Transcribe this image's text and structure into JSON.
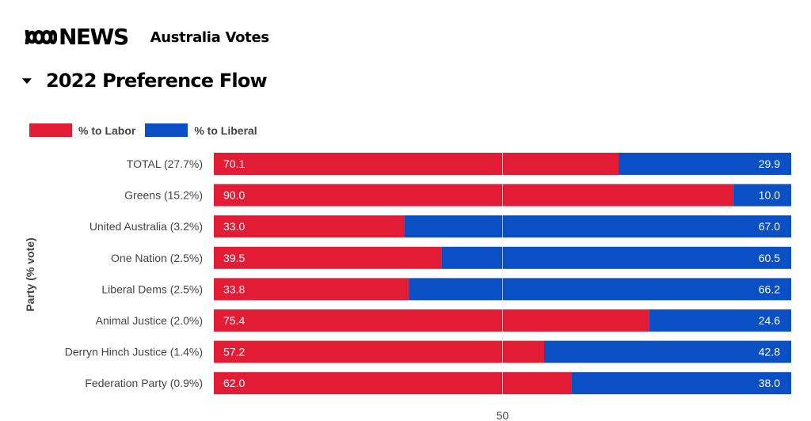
{
  "header": {
    "logo_text": "NEWS",
    "site_name": "Australia Votes"
  },
  "section": {
    "title": "2022 Preference Flow",
    "expanded": true
  },
  "colors": {
    "labor": "#e21c34",
    "liberal": "#0a4fc4"
  },
  "chart_data": {
    "type": "bar",
    "orientation": "horizontal",
    "stacked": true,
    "title": "2022 Preference Flow",
    "xlabel": "",
    "ylabel": "Party (% vote)",
    "xlim": [
      0,
      100
    ],
    "x_ticks": [
      50
    ],
    "x_tick_labels": [
      "50"
    ],
    "reference_line": 50,
    "legend_position": "top-left",
    "legend": [
      "% to Labor",
      "% to Liberal"
    ],
    "categories": [
      "TOTAL (27.7%)",
      "Greens (15.2%)",
      "United Australia (3.2%)",
      "One Nation (2.5%)",
      "Liberal Dems (2.5%)",
      "Animal Justice (2.0%)",
      "Derryn Hinch Justice (1.4%)",
      "Federation Party (0.9%)"
    ],
    "series": [
      {
        "name": "% to Labor",
        "color": "#e21c34",
        "values": [
          70.1,
          90.0,
          33.0,
          39.5,
          33.8,
          75.4,
          57.2,
          62.0
        ],
        "labels": [
          "70.1",
          "90.0",
          "33.0",
          "39.5",
          "33.8",
          "75.4",
          "57.2",
          "62.0"
        ]
      },
      {
        "name": "% to Liberal",
        "color": "#0a4fc4",
        "values": [
          29.9,
          10.0,
          67.0,
          60.5,
          66.2,
          24.6,
          42.8,
          38.0
        ],
        "labels": [
          "29.9",
          "10.0",
          "67.0",
          "60.5",
          "66.2",
          "24.6",
          "42.8",
          "38.0"
        ]
      }
    ]
  }
}
